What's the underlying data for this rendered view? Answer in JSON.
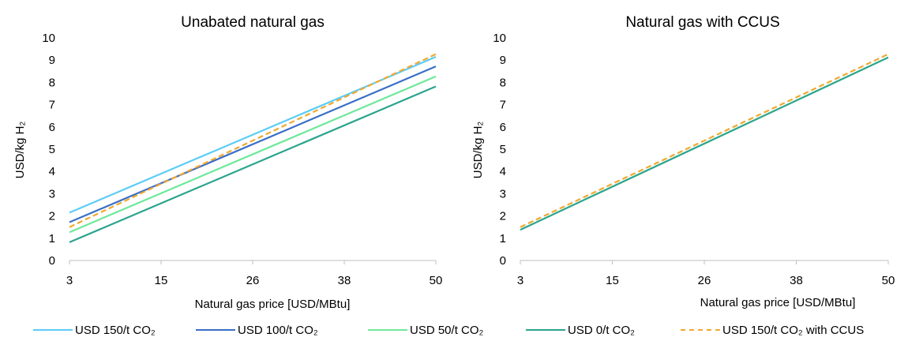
{
  "chart_data": [
    {
      "type": "line",
      "title": "Unabated natural gas",
      "xlabel": "Natural gas price [USD/MBtu]",
      "ylabel": "USD/kg H₂",
      "xticks": [
        "3",
        "15",
        "26",
        "38",
        "50"
      ],
      "xlim": [
        3,
        50
      ],
      "ylim": [
        0,
        10
      ],
      "yticks": [
        0,
        1,
        2,
        3,
        4,
        5,
        6,
        7,
        8,
        9,
        10
      ],
      "grid": false,
      "series": [
        {
          "name": "USD 150/t CO₂",
          "color": "#5bcdf6",
          "dash": false,
          "x": [
            3,
            50
          ],
          "y": [
            2.15,
            9.15
          ]
        },
        {
          "name": "USD 100/t CO₂",
          "color": "#3a6fc7",
          "dash": false,
          "x": [
            3,
            50
          ],
          "y": [
            1.72,
            8.72
          ]
        },
        {
          "name": "USD 50/t CO₂",
          "color": "#6ee89a",
          "dash": false,
          "x": [
            3,
            50
          ],
          "y": [
            1.27,
            8.27
          ]
        },
        {
          "name": "USD 0/t CO₂",
          "color": "#2ca58d",
          "dash": false,
          "x": [
            3,
            50
          ],
          "y": [
            0.82,
            7.82
          ]
        },
        {
          "name": "USD 150/t CO₂ with CCUS",
          "color": "#f0a830",
          "dash": true,
          "x": [
            3,
            50
          ],
          "y": [
            1.5,
            9.27
          ]
        }
      ]
    },
    {
      "type": "line",
      "title": "Natural gas with CCUS",
      "xlabel": "Natural gas price [USD/MBtu]",
      "ylabel": "USD/kg H₂",
      "xticks": [
        "3",
        "15",
        "26",
        "38",
        "50"
      ],
      "xlim": [
        3,
        50
      ],
      "ylim": [
        0,
        10
      ],
      "yticks": [
        0,
        1,
        2,
        3,
        4,
        5,
        6,
        7,
        8,
        9,
        10
      ],
      "grid": false,
      "series": [
        {
          "name": "USD 0/t CO₂",
          "color": "#2ca58d",
          "dash": false,
          "x": [
            3,
            50
          ],
          "y": [
            1.38,
            9.12
          ]
        },
        {
          "name": "USD 150/t CO₂ with CCUS",
          "color": "#f0a830",
          "dash": true,
          "x": [
            3,
            50
          ],
          "y": [
            1.5,
            9.27
          ]
        }
      ]
    }
  ],
  "legend": {
    "position": "bottom",
    "items": [
      {
        "label": "USD 150/t CO₂",
        "color": "#5bcdf6",
        "dash": false
      },
      {
        "label": "USD 100/t CO₂",
        "color": "#3a6fc7",
        "dash": false
      },
      {
        "label": "USD 50/t CO₂",
        "color": "#6ee89a",
        "dash": false
      },
      {
        "label": "USD 0/t CO₂",
        "color": "#2ca58d",
        "dash": false
      },
      {
        "label": "USD 150/t CO₂ with CCUS",
        "color": "#f0a830",
        "dash": true
      }
    ]
  }
}
